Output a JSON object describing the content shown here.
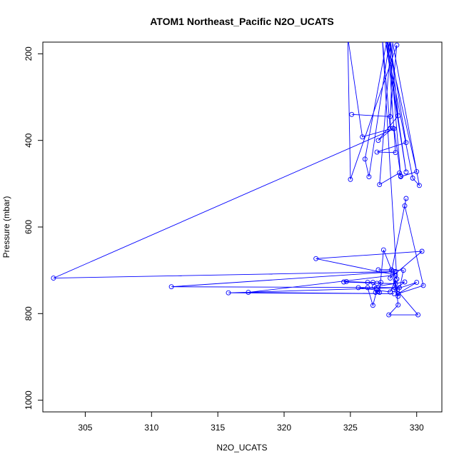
{
  "chart_data": {
    "type": "line",
    "title": "ATOM1 Northeast_Pacific N2O_UCATS",
    "xlabel": "N2O_UCATS",
    "ylabel": "Pressure (mbar)",
    "xlim": [
      301.8,
      331.9
    ],
    "ylim": [
      1027,
      173
    ],
    "y_reversed": true,
    "grid": false,
    "legend": "none",
    "color": "#0000ff",
    "xticks": [
      305,
      310,
      315,
      320,
      325,
      330
    ],
    "yticks": [
      200,
      400,
      600,
      800,
      1000
    ],
    "series": [
      {
        "style": "lines-and-points",
        "points": [
          [
            325.1,
            340
          ],
          [
            328.0,
            345
          ],
          [
            328.5,
            180
          ],
          [
            325.0,
            490
          ],
          [
            324.8,
            160
          ],
          [
            325.9,
            392
          ],
          [
            328.2,
            372
          ],
          [
            327.1,
            400
          ],
          [
            328.6,
            343
          ],
          [
            328.0,
            160
          ],
          [
            326.4,
            484
          ],
          [
            326.1,
            443
          ],
          [
            327.8,
            160
          ],
          [
            328.4,
            428
          ],
          [
            327.0,
            427
          ],
          [
            329.2,
            405
          ],
          [
            327.9,
            160
          ],
          [
            328.8,
            484
          ],
          [
            330.0,
            472
          ],
          [
            327.7,
            160
          ],
          [
            329.2,
            473
          ],
          [
            327.6,
            160
          ],
          [
            329.7,
            487
          ],
          [
            330.2,
            504
          ],
          [
            328.1,
            160
          ],
          [
            327.2,
            502
          ],
          [
            328.7,
            475
          ],
          [
            328.8,
            482
          ],
          [
            328.3,
            373
          ],
          [
            302.6,
            718
          ],
          [
            328.4,
            703
          ],
          [
            311.5,
            738
          ],
          [
            328.7,
            740
          ],
          [
            315.8,
            752
          ],
          [
            328.3,
            754
          ],
          [
            317.3,
            751
          ],
          [
            328.4,
            711
          ],
          [
            322.4,
            673
          ],
          [
            330.4,
            656
          ],
          [
            328.0,
            718
          ],
          [
            329.2,
            534
          ],
          [
            329.1,
            551
          ],
          [
            330.5,
            735
          ],
          [
            328.6,
            754
          ],
          [
            330.0,
            728
          ],
          [
            328.3,
            745
          ],
          [
            329.1,
            727
          ],
          [
            326.8,
            738
          ],
          [
            326.9,
            751
          ],
          [
            327.1,
            748
          ],
          [
            327.3,
            728
          ],
          [
            327.0,
            730
          ],
          [
            326.7,
            728
          ],
          [
            326.3,
            728
          ],
          [
            324.7,
            726
          ],
          [
            324.5,
            727
          ],
          [
            328.4,
            731
          ],
          [
            328.6,
            760
          ],
          [
            329.0,
            700
          ],
          [
            327.1,
            699
          ],
          [
            328.1,
            699
          ],
          [
            327.5,
            653
          ],
          [
            327.2,
            751
          ],
          [
            327.0,
            745
          ],
          [
            326.7,
            781
          ],
          [
            326.3,
            740
          ],
          [
            325.6,
            740
          ],
          [
            328.0,
            750
          ],
          [
            328.4,
            723
          ],
          [
            328.6,
            780
          ],
          [
            327.9,
            803
          ],
          [
            330.1,
            803
          ],
          [
            328.4,
            742
          ],
          [
            328.2,
            702
          ],
          [
            328.5,
            720
          ],
          [
            327.4,
            160
          ],
          [
            328.0,
            372
          ],
          [
            328.2,
            160
          ]
        ]
      }
    ]
  }
}
